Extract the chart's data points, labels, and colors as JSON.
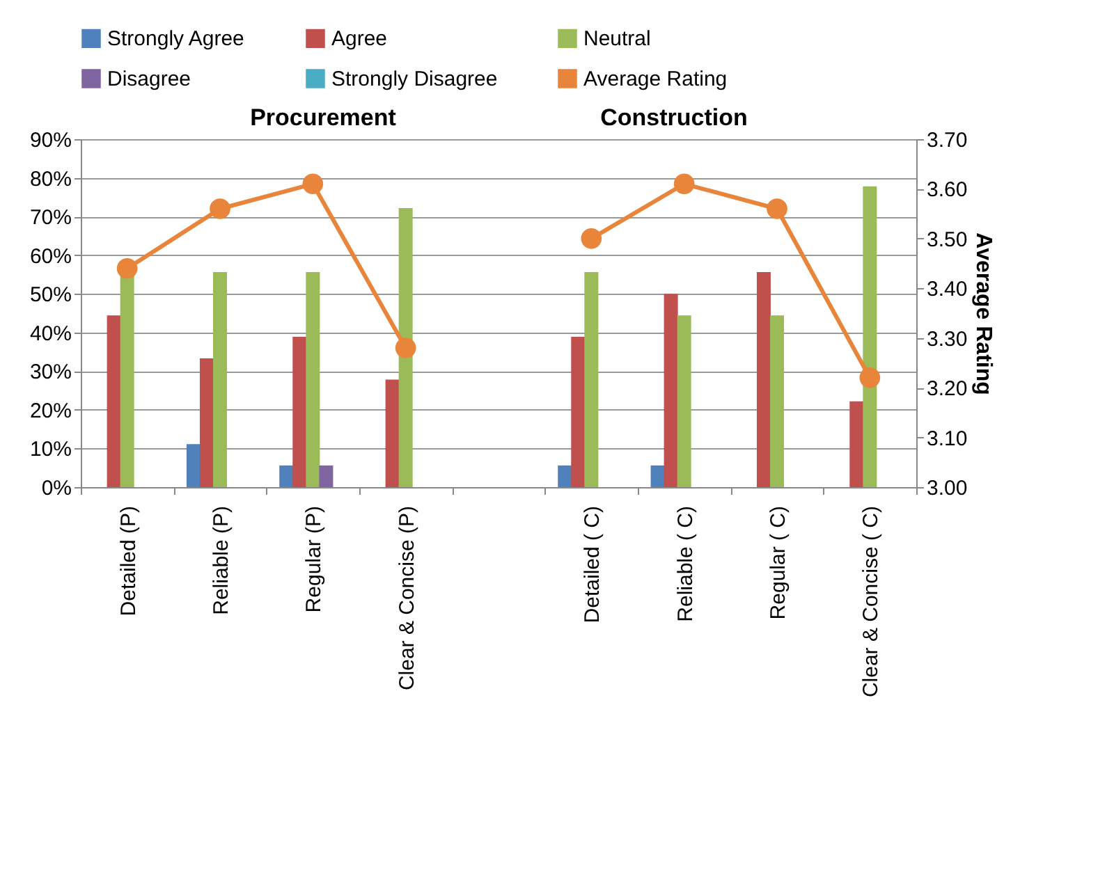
{
  "chart_data": {
    "type": "bar",
    "categories": [
      "Detailed (P)",
      "Reliable (P)",
      "Regular (P)",
      "Clear & Concise (P)",
      null,
      "Detailed ( C)",
      "Reliable ( C)",
      "Regular ( C)",
      "Clear & Concise ( C)"
    ],
    "series": [
      {
        "name": "Strongly Agree",
        "color": "#4f81bd",
        "values": [
          0,
          11.1,
          5.6,
          0,
          null,
          5.6,
          5.6,
          0,
          0
        ]
      },
      {
        "name": "Agree",
        "color": "#c0504d",
        "values": [
          44.4,
          33.3,
          38.9,
          27.8,
          null,
          38.9,
          50,
          55.6,
          22.2
        ]
      },
      {
        "name": "Neutral",
        "color": "#9bbb59",
        "values": [
          55.6,
          55.6,
          55.6,
          72.2,
          null,
          55.6,
          44.4,
          44.4,
          77.8
        ]
      },
      {
        "name": "Disagree",
        "color": "#8064a2",
        "values": [
          0,
          0,
          5.6,
          0,
          null,
          0,
          0,
          0,
          0
        ]
      },
      {
        "name": "Strongly Disagree",
        "color": "#4bacc6",
        "values": [
          0,
          0,
          0,
          0,
          null,
          0,
          0,
          0,
          0
        ]
      },
      {
        "name": "Average Rating",
        "type": "line",
        "axis": "y2",
        "color": "#e8853a",
        "marker": "circle",
        "line_style": "solid",
        "values": [
          3.44,
          3.56,
          3.61,
          3.28,
          null,
          3.5,
          3.61,
          3.56,
          3.22
        ]
      }
    ],
    "y2label": "Average Rating",
    "annotations": [
      "Procurement",
      "Construction"
    ],
    "ylim": [
      0,
      90
    ],
    "yticks": [
      {
        "value": 0,
        "label": "0%"
      },
      {
        "value": 10,
        "label": "10%"
      },
      {
        "value": 20,
        "label": "20%"
      },
      {
        "value": 30,
        "label": "30%"
      },
      {
        "value": 40,
        "label": "40%"
      },
      {
        "value": 50,
        "label": "50%"
      },
      {
        "value": 60,
        "label": "60%"
      },
      {
        "value": 70,
        "label": "70%"
      },
      {
        "value": 80,
        "label": "80%"
      },
      {
        "value": 90,
        "label": "90%"
      }
    ],
    "y2lim": [
      3,
      3.7
    ],
    "y2ticks": [
      {
        "value": 3,
        "label": "3.00"
      },
      {
        "value": 3.1,
        "label": "3.10"
      },
      {
        "value": 3.2,
        "label": "3.20"
      },
      {
        "value": 3.3,
        "label": "3.30"
      },
      {
        "value": 3.4,
        "label": "3.40"
      },
      {
        "value": 3.5,
        "label": "3.50"
      },
      {
        "value": 3.6,
        "label": "3.60"
      },
      {
        "value": 3.7,
        "label": "3.70"
      }
    ],
    "grid": "y",
    "legend": "top"
  }
}
